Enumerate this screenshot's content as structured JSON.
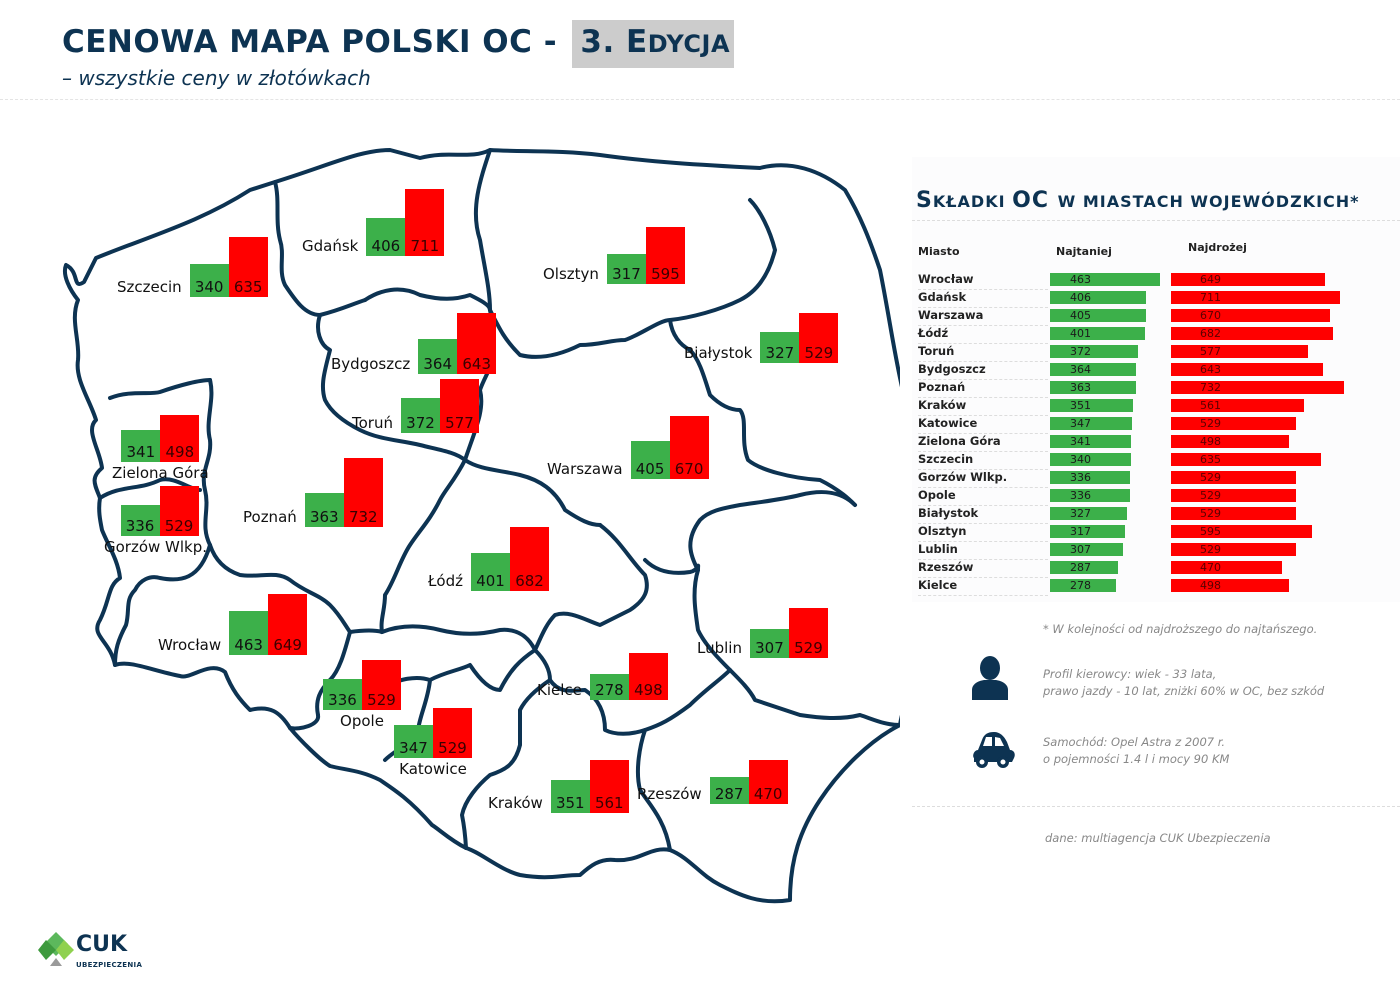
{
  "header": {
    "title_main": "CENOWA MAPA POLSKI OC - ",
    "title_edition_num": "3. ",
    "title_edition_e": "E",
    "title_edition_rest": "DYCJA",
    "subtitle": "– wszystkie ceny w złotówkach"
  },
  "map": {
    "cities": [
      {
        "name": "Szczecin",
        "min": "340",
        "max": "635"
      },
      {
        "name": "Gdańsk",
        "min": "406",
        "max": "711"
      },
      {
        "name": "Olsztyn",
        "min": "317",
        "max": "595"
      },
      {
        "name": "Bydgoszcz",
        "min": "364",
        "max": "643"
      },
      {
        "name": "Toruń",
        "min": "372",
        "max": "577"
      },
      {
        "name": "Białystok",
        "min": "327",
        "max": "529"
      },
      {
        "name": "Zielona Góra",
        "min": "341",
        "max": "498"
      },
      {
        "name": "Gorzów Wlkp.",
        "min": "336",
        "max": "529"
      },
      {
        "name": "Poznań",
        "min": "363",
        "max": "732"
      },
      {
        "name": "Warszawa",
        "min": "405",
        "max": "670"
      },
      {
        "name": "Łódź",
        "min": "401",
        "max": "682"
      },
      {
        "name": "Wrocław",
        "min": "463",
        "max": "649"
      },
      {
        "name": "Opole",
        "min": "336",
        "max": "529"
      },
      {
        "name": "Katowice",
        "min": "347",
        "max": "529"
      },
      {
        "name": "Kielce",
        "min": "278",
        "max": "498"
      },
      {
        "name": "Lublin",
        "min": "307",
        "max": "529"
      },
      {
        "name": "Kraków",
        "min": "351",
        "max": "561"
      },
      {
        "name": "Rzeszów",
        "min": "287",
        "max": "470"
      }
    ]
  },
  "panel": {
    "title_s": "S",
    "title_rest1": "KŁADKI ",
    "title_oc": "OC ",
    "title_rest2": "W MIASTACH WOJEWÓDZKICH*",
    "col_city": "Miasto",
    "col_min": "Najtaniej",
    "col_max": "Najdrożej",
    "note": "* W kolejności od najdroższego do najtańszego.",
    "driver_line1": "Profil kierowcy: wiek - 33 lata,",
    "driver_line2": "prawo jazdy - 10 lat, zniżki 60% w OC, bez szkód",
    "car_line1": "Samochód: Opel Astra z 2007 r.",
    "car_line2": "o pojemności 1.4 l i mocy 90 KM",
    "source": "dane: multiagencja CUK Ubezpieczenia",
    "icons": {
      "driver": "person-icon",
      "car": "car-icon"
    }
  },
  "logo": {
    "name": "CUK",
    "sub": "UBEZPIECZENIA"
  },
  "colors": {
    "min": "#3cb04a",
    "max": "#ff0000",
    "navy": "#0d3352",
    "edition_bg": "#cccccc"
  },
  "chart_data": [
    {
      "type": "bar",
      "title": "Składki OC w miastach wojewódzkich*",
      "xlabel": "",
      "ylabel": "",
      "orientation": "horizontal",
      "categories": [
        "Wrocław",
        "Gdańsk",
        "Warszawa",
        "Łódź",
        "Toruń",
        "Bydgoszcz",
        "Poznań",
        "Kraków",
        "Katowice",
        "Zielona Góra",
        "Szczecin",
        "Gorzów Wlkp.",
        "Opole",
        "Białystok",
        "Olsztyn",
        "Lublin",
        "Rzeszów",
        "Kielce"
      ],
      "series": [
        {
          "name": "Najtaniej",
          "color": "#3cb04a",
          "values": [
            463,
            406,
            405,
            401,
            372,
            364,
            363,
            351,
            347,
            341,
            340,
            336,
            336,
            327,
            317,
            307,
            287,
            278
          ]
        },
        {
          "name": "Najdrożej",
          "color": "#ff0000",
          "values": [
            649,
            711,
            670,
            682,
            577,
            643,
            732,
            561,
            529,
            498,
            635,
            529,
            529,
            529,
            595,
            529,
            470,
            498
          ]
        }
      ],
      "annotation": "* W kolejności od najdroższego do najtańszego."
    },
    {
      "type": "bar",
      "title": "Cenowa mapa Polski OC - 3. Edycja",
      "subtitle": "– wszystkie ceny w złotówkach",
      "categories": [
        "Szczecin",
        "Gdańsk",
        "Olsztyn",
        "Bydgoszcz",
        "Toruń",
        "Białystok",
        "Zielona Góra",
        "Gorzów Wlkp.",
        "Poznań",
        "Warszawa",
        "Łódź",
        "Wrocław",
        "Opole",
        "Katowice",
        "Kielce",
        "Lublin",
        "Kraków",
        "Rzeszów"
      ],
      "series": [
        {
          "name": "Najtaniej",
          "values": [
            340,
            406,
            317,
            364,
            372,
            327,
            341,
            336,
            363,
            405,
            401,
            463,
            336,
            347,
            278,
            307,
            351,
            287
          ]
        },
        {
          "name": "Najdrożej",
          "values": [
            635,
            711,
            595,
            643,
            577,
            529,
            498,
            529,
            732,
            670,
            682,
            649,
            529,
            529,
            498,
            529,
            561,
            470
          ]
        }
      ]
    }
  ]
}
